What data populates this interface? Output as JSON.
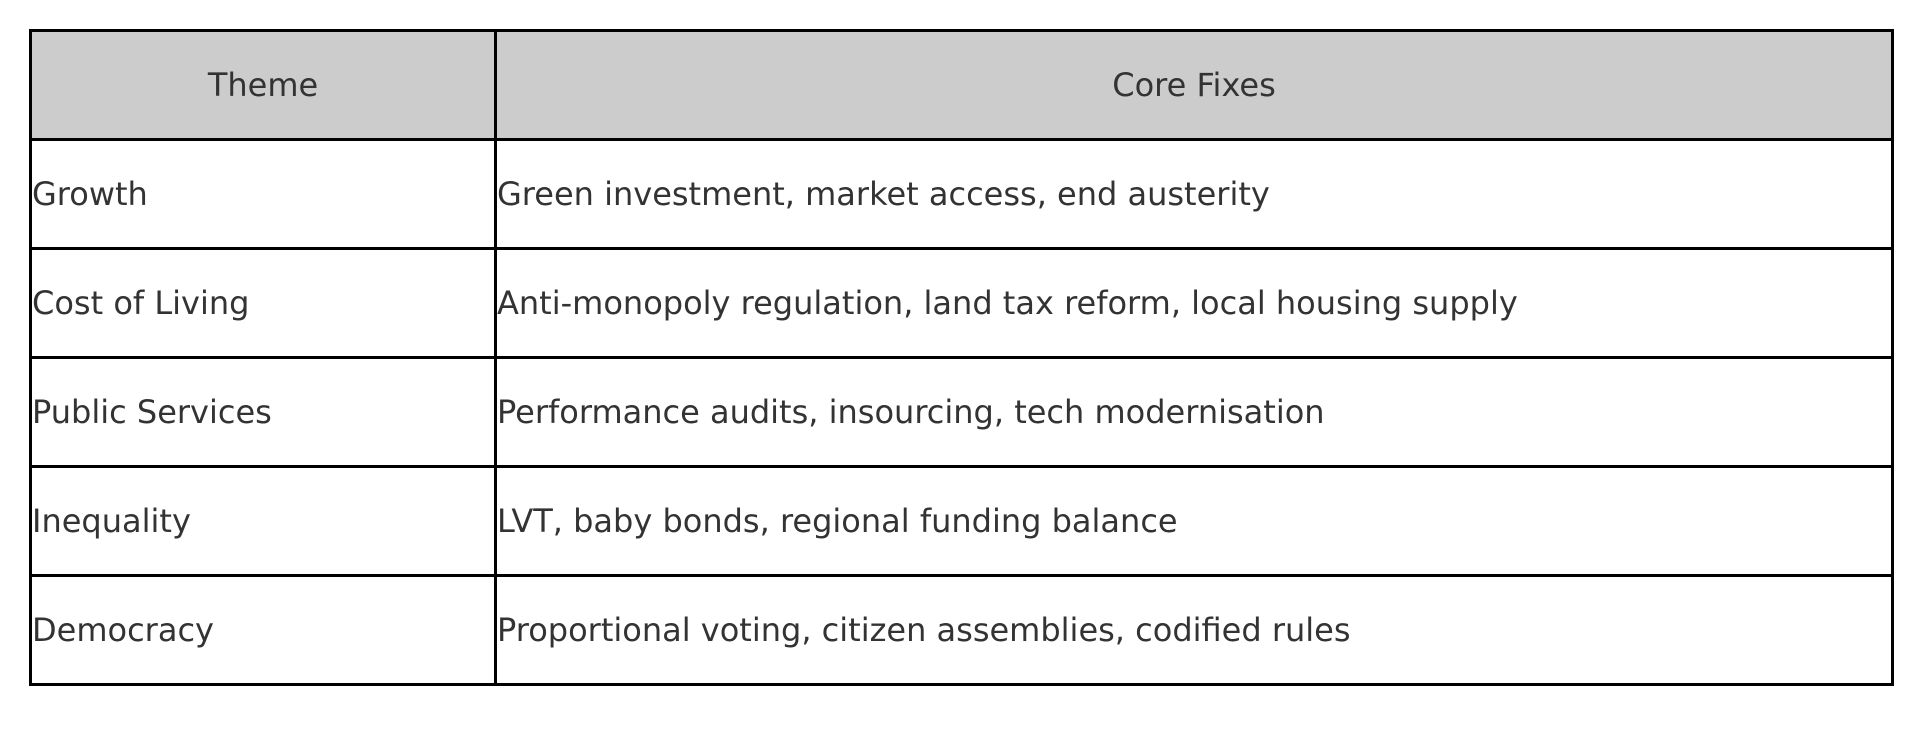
{
  "table": {
    "headers": {
      "theme": "Theme",
      "core_fixes": "Core Fixes"
    },
    "rows": [
      {
        "theme": "Growth",
        "core_fixes": "Green investment, market access, end austerity"
      },
      {
        "theme": "Cost of Living",
        "core_fixes": "Anti-monopoly regulation, land tax reform, local housing supply"
      },
      {
        "theme": "Public Services",
        "core_fixes": "Performance audits, insourcing, tech modernisation"
      },
      {
        "theme": "Inequality",
        "core_fixes": "LVT, baby bonds, regional funding balance"
      },
      {
        "theme": "Democracy",
        "core_fixes": "Proportional voting, citizen assemblies, codified rules"
      }
    ],
    "colors": {
      "header_background": "#cccccc",
      "border": "#000000",
      "text": "#333333"
    }
  }
}
